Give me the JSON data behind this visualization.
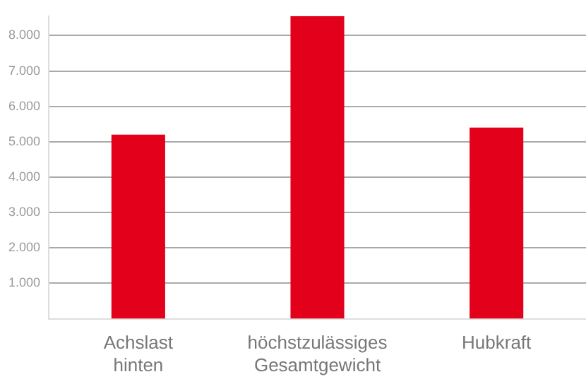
{
  "chart_data": {
    "type": "bar",
    "categories": [
      "Achslast hinten",
      "höchstzulässiges Gesamtgewicht",
      "Hubkraft"
    ],
    "values": [
      5200,
      8550,
      5400
    ],
    "color": "#e2001a",
    "ylim": [
      0,
      8550
    ],
    "yticks": [
      {
        "value": 1000,
        "label": "1.000"
      },
      {
        "value": 2000,
        "label": "2.000"
      },
      {
        "value": 3000,
        "label": "3.000"
      },
      {
        "value": 4000,
        "label": "4.000"
      },
      {
        "value": 5000,
        "label": "5.000"
      },
      {
        "value": 6000,
        "label": "6.000"
      },
      {
        "value": 7000,
        "label": "7.000"
      },
      {
        "value": 8000,
        "label": "8.000"
      }
    ],
    "grid": "y",
    "legend": false
  }
}
